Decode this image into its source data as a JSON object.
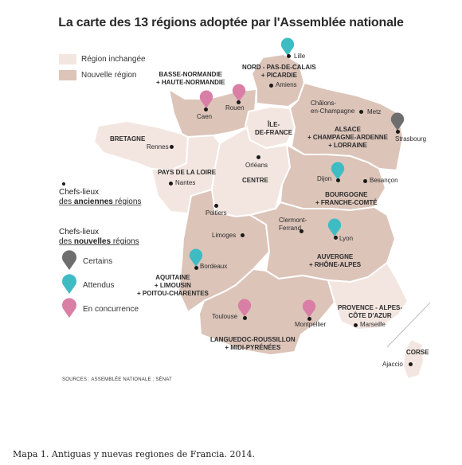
{
  "title": "La carte des 13 régions adoptée par l'Assemblée nationale",
  "legend": {
    "unchanged": "Région inchangée",
    "new": "Nouvelle région",
    "colors": {
      "unchanged": "#f3e6e0",
      "new": "#dcc4b9"
    },
    "chefs_old_line1": "Chefs-lieux",
    "chefs_old_line2_prefix": "des ",
    "chefs_old_line2_bold": "anciennes",
    "chefs_old_line2_suffix": " régions",
    "chefs_new_line1": "Chefs-lieux",
    "chefs_new_line2_prefix": "des ",
    "chefs_new_line2_bold": "nouvelles",
    "chefs_new_line2_suffix": " régions",
    "pins": [
      {
        "label": "Certains",
        "color": "#6e6e6e",
        "icon": "grey-pin-icon"
      },
      {
        "label": "Attendus",
        "color": "#3fbcc3",
        "icon": "teal-pin-icon"
      },
      {
        "label": "En concurrence",
        "color": "#d97fa6",
        "icon": "pink-pin-icon"
      }
    ]
  },
  "regions": {
    "basse_normandie": [
      "BASSE-NORMANDIE",
      "+ HAUTE-NORMANDIE"
    ],
    "nord": [
      "NORD - PAS-DE-CALAIS",
      "+ PICARDIE"
    ],
    "idf": [
      "ÎLE-",
      "DE-FRANCE"
    ],
    "bretagne": "BRETAGNE",
    "alsace": [
      "ALSACE",
      "+ CHAMPAGNE-ARDENNE",
      "+ LORRAINE"
    ],
    "pays_loire": "PAYS DE LA LOIRE",
    "centre": "CENTRE",
    "bourgogne": [
      "BOURGOGNE",
      "+ FRANCHE-COMTÉ"
    ],
    "auvergne": [
      "AUVERGNE",
      "+ RHÔNE-ALPES"
    ],
    "aquitaine": [
      "AQUITAINE",
      "+ LIMOUSIN",
      "+ POITOU-CHARENTES"
    ],
    "provence": [
      "PROVENCE - ALPES-",
      "CÔTE D'AZUR"
    ],
    "languedoc": [
      "LANGUEDOC-ROUSSILLON",
      "+ MIDI-PYRÉNÉES"
    ],
    "corse": "CORSE"
  },
  "cities": {
    "lille": "Lille",
    "amiens": "Amiens",
    "caen": "Caen",
    "rouen": "Rouen",
    "chalons": [
      "Châlons-",
      "en-Champagne"
    ],
    "metz": "Metz",
    "strasbourg": "Strasbourg",
    "rennes": "Rennes",
    "orleans": "Orléans",
    "dijon": "Dijon",
    "besancon": "Besançon",
    "nantes": "Nantes",
    "poitiers": "Poitiers",
    "clermont": [
      "Clermont-",
      "Ferrand"
    ],
    "lyon": "Lyon",
    "limoges": "Limoges",
    "bordeaux": "Bordeaux",
    "toulouse": "Toulouse",
    "montpellier": "Montpellier",
    "marseille": "Marseille",
    "ajaccio": "Ajaccio"
  },
  "sources": "SOURCES : ASSEMBLÉE NATIONALE ; SÉNAT",
  "caption": "Mapa 1. Antiguas y nuevas regiones de Francia. 2014."
}
